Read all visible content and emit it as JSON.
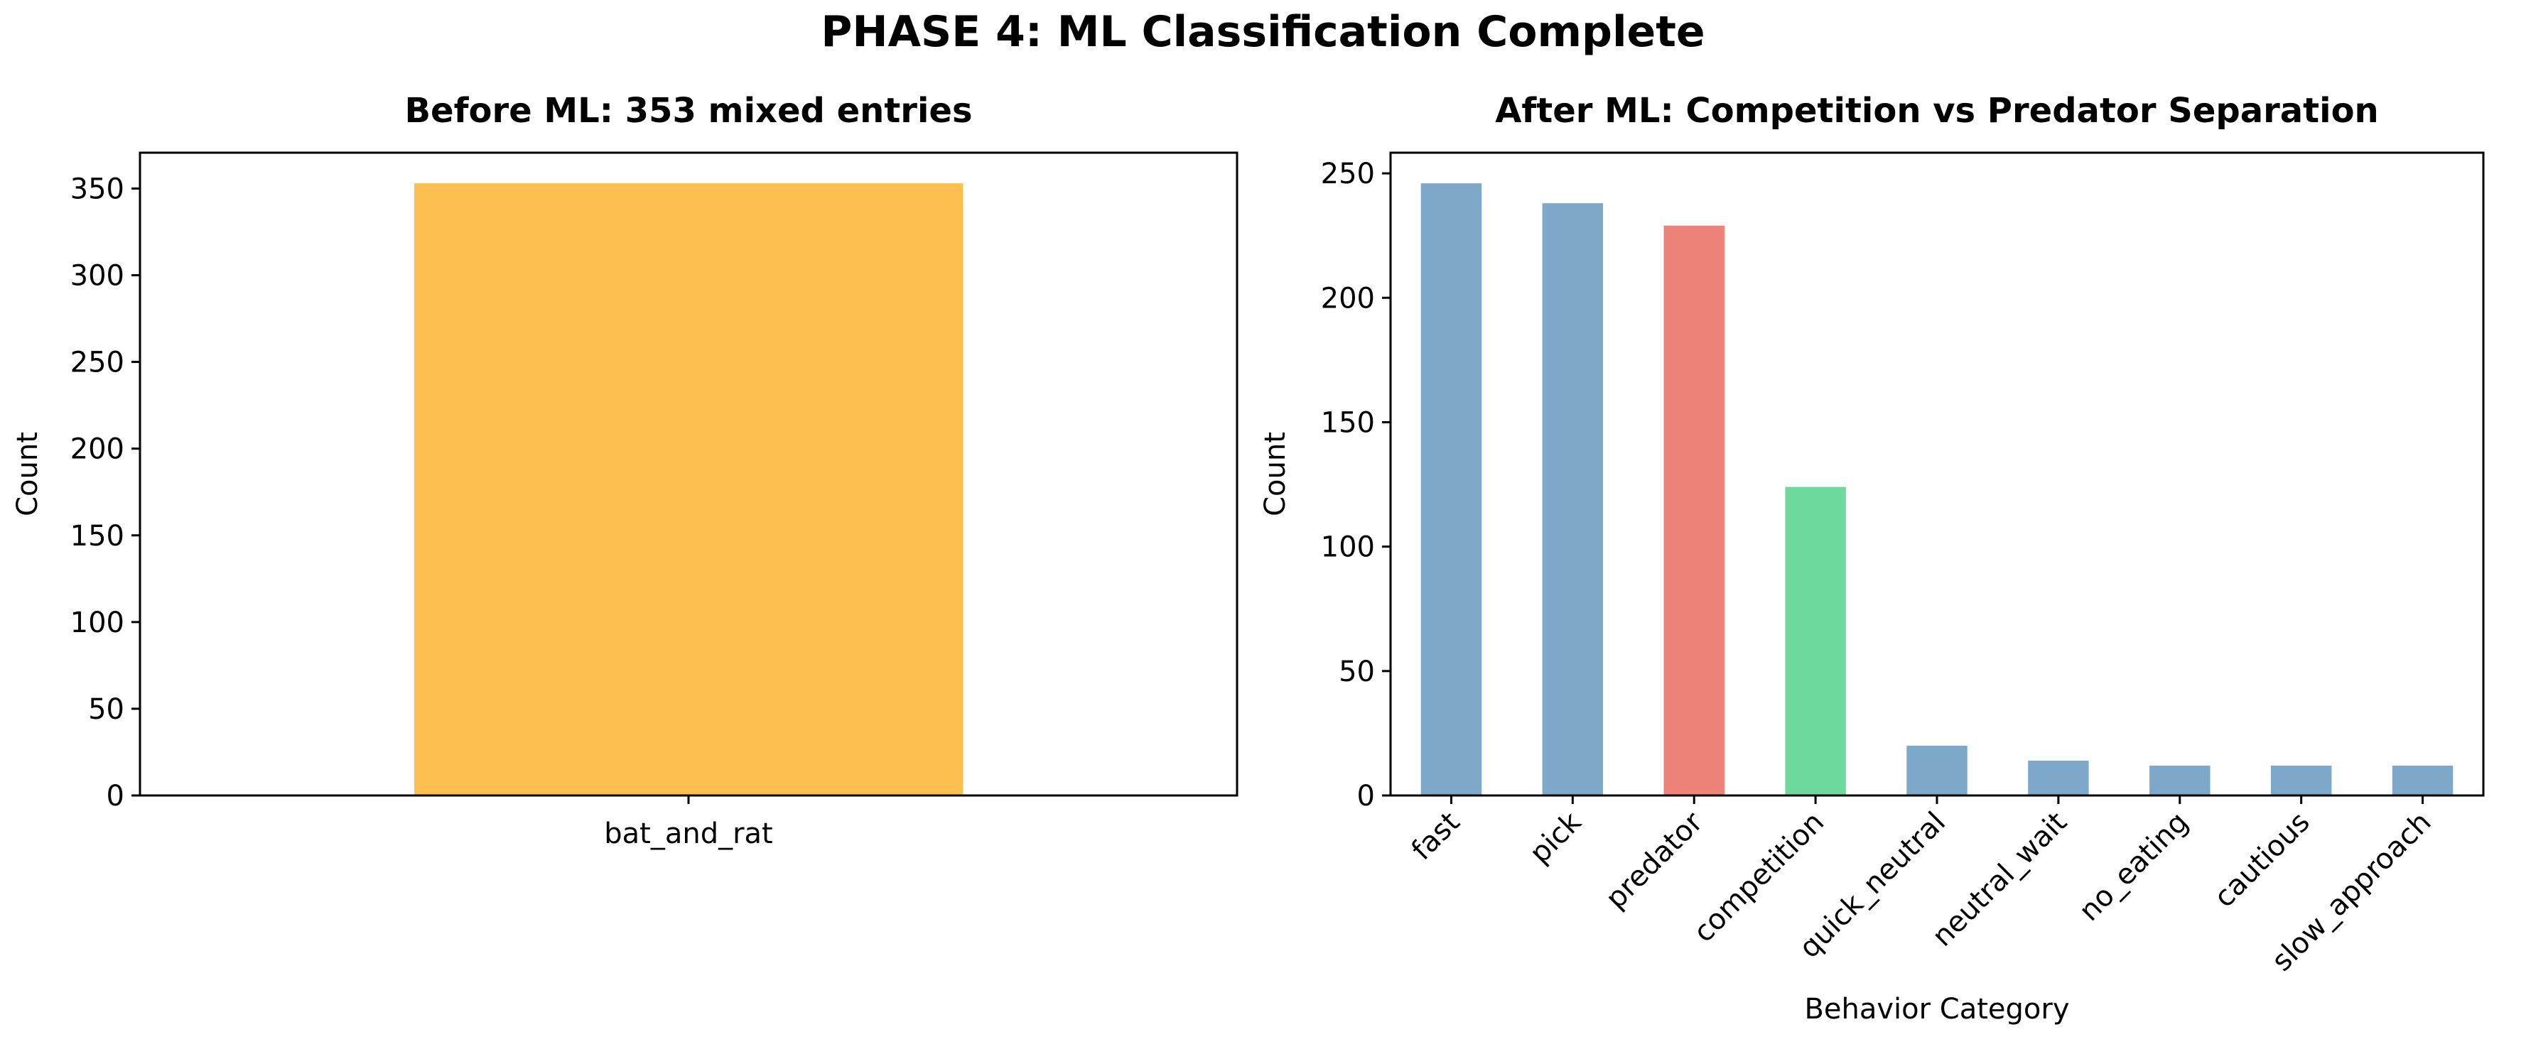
{
  "suptitle": "PHASE 4: ML Classification Complete",
  "chart_data": [
    {
      "type": "bar",
      "title": "Before ML: 353 mixed entries",
      "xlabel": "",
      "ylabel": "Count",
      "categories": [
        "bat_and_rat"
      ],
      "values": [
        353
      ],
      "colors": [
        "#fcbf50"
      ],
      "ylim": [
        0,
        370.65
      ],
      "yticks": [
        0,
        50,
        100,
        150,
        200,
        250,
        300,
        350
      ],
      "grid": false,
      "legend": "none"
    },
    {
      "type": "bar",
      "title": "After ML: Competition vs Predator Separation",
      "xlabel": "Behavior Category",
      "ylabel": "Count",
      "categories": [
        "fast",
        "pick",
        "predator",
        "competition",
        "quick_neutral",
        "neutral_wait",
        "no_eating",
        "cautious",
        "slow_approach"
      ],
      "values": [
        246,
        238,
        229,
        124,
        20,
        14,
        12,
        12,
        12
      ],
      "colors": [
        "#7ea8ca",
        "#7ea8ca",
        "#ec8278",
        "#6ed99c",
        "#7ea8ca",
        "#7ea8ca",
        "#7ea8ca",
        "#7ea8ca",
        "#7ea8ca"
      ],
      "ylim": [
        0,
        258.3
      ],
      "yticks": [
        0,
        50,
        100,
        150,
        200,
        250
      ],
      "grid": false,
      "legend": "none"
    }
  ]
}
